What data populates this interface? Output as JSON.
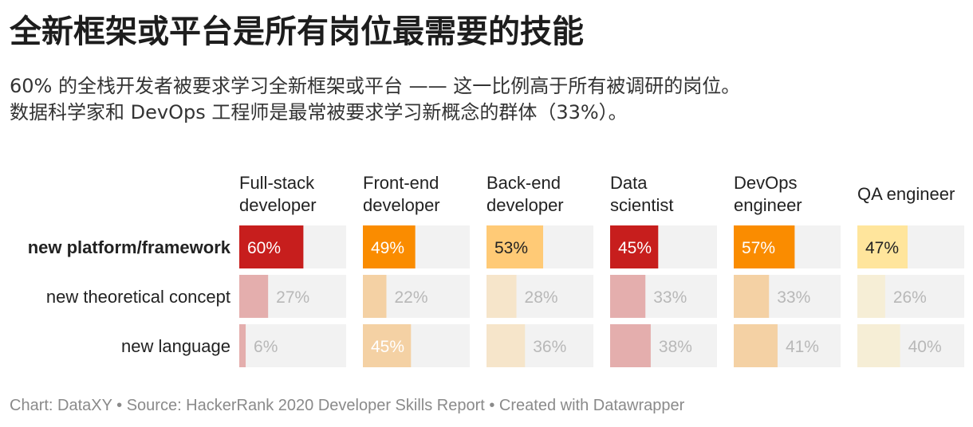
{
  "title": "全新框架或平台是所有岗位最需要的技能",
  "subtitle_lines": [
    "60% 的全栈开发者被要求学习全新框架或平台 —— 这一比例高于所有被调研的岗位。",
    "数据科学家和 DevOps 工程师是最常被要求学习新概念的群体（33%）。"
  ],
  "footer": "Chart: DataXY • Source: HackerRank 2020 Developer Skills Report • Created with Datawrapper",
  "chart_data": {
    "type": "table",
    "value_unit": "%",
    "range": [
      0,
      100
    ],
    "columns": [
      {
        "label": [
          "Full-stack",
          "developer"
        ],
        "color": "#c71e1d"
      },
      {
        "label": [
          "Front-end",
          "developer"
        ],
        "color": "#fa8c00"
      },
      {
        "label": [
          "Back-end",
          "developer"
        ],
        "color": "#ffca76"
      },
      {
        "label": [
          "Data",
          "scientist"
        ],
        "color": "#c71e1d"
      },
      {
        "label": [
          "DevOps",
          "engineer"
        ],
        "color": "#fa8c00"
      },
      {
        "label": [
          "QA engineer"
        ],
        "color": "#ffe59c"
      }
    ],
    "rows": [
      {
        "label": "new platform/framework",
        "bold": true,
        "values": [
          60,
          49,
          53,
          45,
          57,
          47
        ]
      },
      {
        "label": "new theoretical concept",
        "bold": false,
        "values": [
          27,
          22,
          28,
          33,
          33,
          26
        ]
      },
      {
        "label": "new language",
        "bold": false,
        "values": [
          6,
          45,
          36,
          38,
          41,
          40
        ]
      }
    ]
  }
}
